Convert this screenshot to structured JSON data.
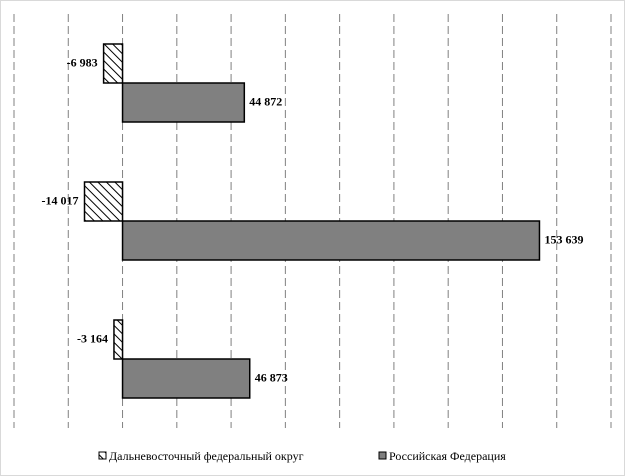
{
  "chart_data": {
    "type": "hbar",
    "series": [
      {
        "name": "Дальневосточный федеральный округ",
        "color": "#ffffff",
        "hatch": true,
        "values": [
          -6983,
          -14017,
          -3164
        ],
        "value_labels": [
          "-6 983",
          "-14 017",
          "-3 164"
        ]
      },
      {
        "name": "Российская Федерация",
        "color": "#808080",
        "hatch": false,
        "values": [
          44872,
          153639,
          46873
        ],
        "value_labels": [
          "44 872",
          "153 639",
          "46 873"
        ]
      }
    ],
    "xlim": [
      -40000,
      180000
    ],
    "xticks": [
      -40000,
      -20000,
      0,
      20000,
      40000,
      60000,
      80000,
      100000,
      120000,
      140000,
      160000,
      180000
    ],
    "grid": true,
    "legend": "bottom"
  }
}
